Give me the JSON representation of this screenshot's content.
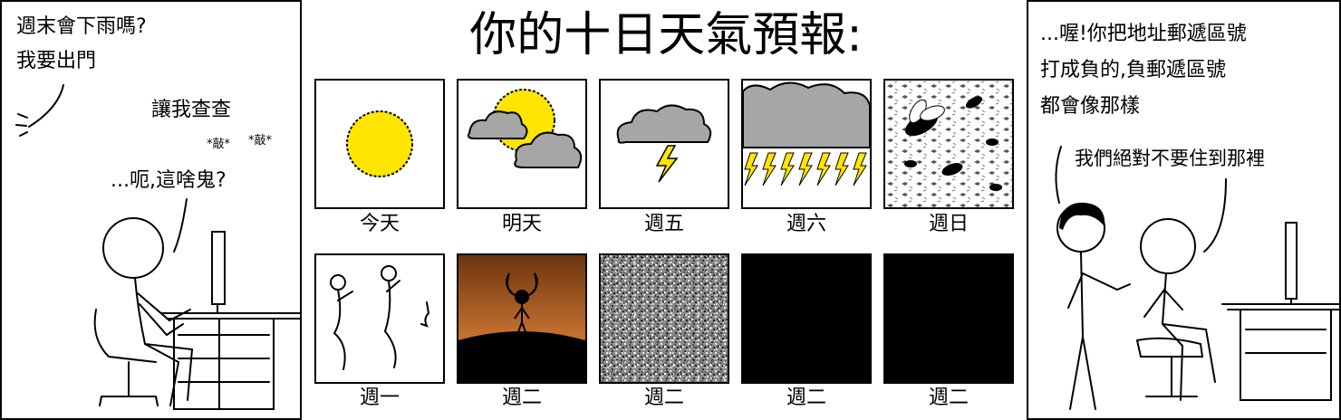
{
  "left_panel": {
    "question_line1": "週末會下雨嗎?",
    "question_line2": "我要出門",
    "reply": "讓我查查",
    "typing1": "*敲*",
    "typing2": "*敲*",
    "puzzled": "...呃,這啥鬼?"
  },
  "forecast": {
    "title": "你的十日天氣預報:",
    "days": [
      {
        "label": "今天",
        "icon": "sun-icon"
      },
      {
        "label": "明天",
        "icon": "partly-cloudy-icon"
      },
      {
        "label": "週五",
        "icon": "thunderstorm-icon"
      },
      {
        "label": "週六",
        "icon": "heavy-lightning-icon"
      },
      {
        "label": "週日",
        "icon": "insect-swarm-icon"
      },
      {
        "label": "週一",
        "icon": "stick-figures-icon"
      },
      {
        "label": "週二",
        "icon": "horned-figure-icon"
      },
      {
        "label": "週二",
        "icon": "static-noise-icon"
      },
      {
        "label": "週二",
        "icon": "blackout-icon"
      },
      {
        "label": "週二",
        "icon": "blackout-icon"
      }
    ],
    "colors": {
      "sun": "#FFE500",
      "cloud": "#A6A6A6",
      "lightning": "#FFE500",
      "dusk": "#8B4513"
    }
  },
  "right_panel": {
    "line1": "...喔!你把地址郵遞區號",
    "line2": "打成負的,負郵遞區號",
    "line3": "都會像那樣",
    "reply": "我們絕對不要住到那裡"
  }
}
